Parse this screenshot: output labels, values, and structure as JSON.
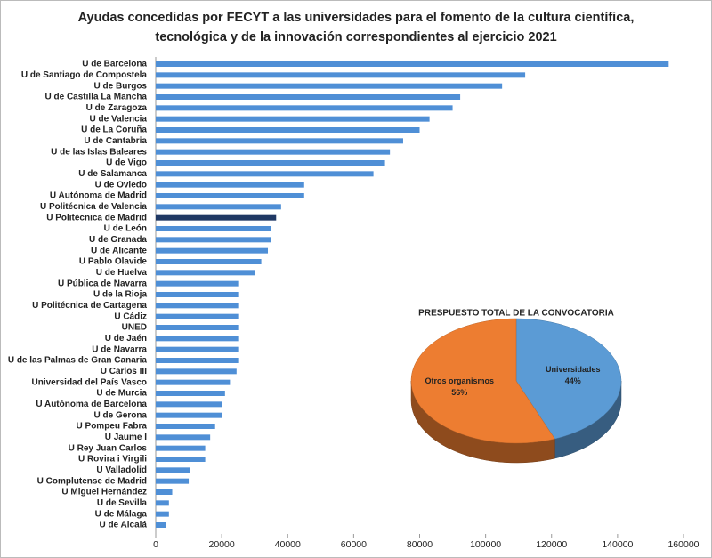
{
  "chart_data": [
    {
      "type": "barh",
      "title": [
        "Ayudas concedidas por FECYT a las universidades para el fomento de la cultura científica,",
        "tecnológica y de la innovación correspondientes al ejercicio 2021"
      ],
      "categories": [
        "U de Barcelona",
        "U de Santiago de Compostela",
        "U de Burgos",
        "U de Castilla La Mancha",
        "U de Zaragoza",
        "U de Valencia",
        "U de La Coruña",
        "U de Cantabria",
        "U de las Islas Baleares",
        "U de Vigo",
        "U de Salamanca",
        "U de Oviedo",
        "U Autónoma de Madrid",
        "U Politécnica de Valencia",
        "U Politécnica de Madrid",
        "U de León",
        "U de Granada",
        "U de Alicante",
        "U Pablo Olavide",
        "U de Huelva",
        "U Pública de Navarra",
        "U de la Rioja",
        "U Politécnica de Cartagena",
        "U Cádiz",
        "UNED",
        "U de Jaén",
        "U de Navarra",
        "U de las Palmas de Gran Canaria",
        "U Carlos III",
        "Universidad del País Vasco",
        "U de Murcia",
        "U Autónoma de Barcelona",
        "U de Gerona",
        "U Pompeu Fabra",
        "U Jaume I",
        "U Rey Juan Carlos",
        "U Rovira i Virgili",
        "U Valladolid",
        "U Complutense de Madrid",
        "U Miguel Hernández",
        "U de Sevilla",
        "U de Málaga",
        "U de Alcalá"
      ],
      "values": [
        155500,
        112000,
        105000,
        92300,
        90000,
        83000,
        80000,
        75000,
        71000,
        69500,
        66000,
        45000,
        45000,
        38000,
        36500,
        35000,
        35000,
        34000,
        32000,
        30000,
        25000,
        25000,
        25000,
        25000,
        25000,
        25000,
        25000,
        25000,
        24500,
        22500,
        21000,
        20000,
        20000,
        18000,
        16500,
        15000,
        15000,
        10500,
        10000,
        5000,
        4000,
        4000,
        3000
      ],
      "colors": [
        "#4f8fd6",
        "#4f8fd6",
        "#4f8fd6",
        "#4f8fd6",
        "#4f8fd6",
        "#4f8fd6",
        "#4f8fd6",
        "#4f8fd6",
        "#4f8fd6",
        "#4f8fd6",
        "#4f8fd6",
        "#4f8fd6",
        "#4f8fd6",
        "#4f8fd6",
        "#1f3864",
        "#4f8fd6",
        "#4f8fd6",
        "#4f8fd6",
        "#4f8fd6",
        "#4f8fd6",
        "#4f8fd6",
        "#4f8fd6",
        "#4f8fd6",
        "#4f8fd6",
        "#4f8fd6",
        "#4f8fd6",
        "#4f8fd6",
        "#4f8fd6",
        "#4f8fd6",
        "#4f8fd6",
        "#4f8fd6",
        "#4f8fd6",
        "#4f8fd6",
        "#4f8fd6",
        "#4f8fd6",
        "#4f8fd6",
        "#4f8fd6",
        "#4f8fd6",
        "#4f8fd6",
        "#4f8fd6",
        "#4f8fd6",
        "#4f8fd6",
        "#4f8fd6"
      ],
      "xlim": [
        0,
        160000
      ],
      "xticks": [
        0,
        20000,
        40000,
        60000,
        80000,
        100000,
        120000,
        140000,
        160000
      ]
    },
    {
      "type": "pie3d",
      "title": "PRESPUESTO TOTAL DE LA CONVOCATORIA",
      "categories": [
        "Universidades",
        "Otros organismos"
      ],
      "values": [
        44,
        56
      ],
      "value_labels": [
        "44%",
        "56%"
      ],
      "colors": [
        "#5b9bd5",
        "#ed7d31"
      ]
    }
  ]
}
